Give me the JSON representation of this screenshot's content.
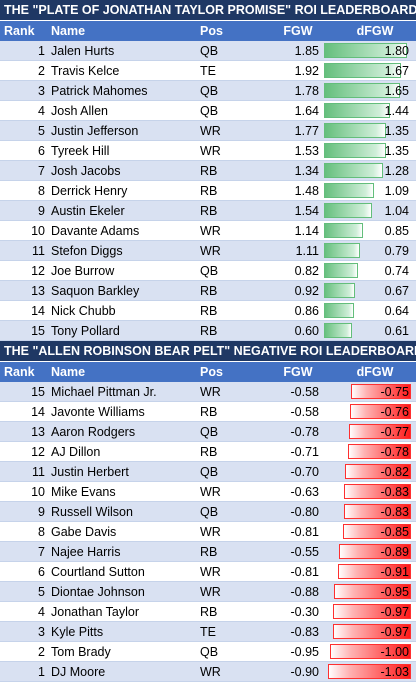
{
  "top_table": {
    "title": "THE \"PLATE OF JONATHAN TAYLOR PROMISE\" ROI LEADERBOARD",
    "headers": {
      "rank": "Rank",
      "name": "Name",
      "pos": "Pos",
      "fgw": "FGW",
      "dfgw": "dFGW"
    },
    "rows": [
      {
        "rank": "1",
        "name": "Jalen Hurts",
        "pos": "QB",
        "fgw": "1.85",
        "dfgw": "1.80",
        "dfgw_value": 1.8
      },
      {
        "rank": "2",
        "name": "Travis Kelce",
        "pos": "TE",
        "fgw": "1.92",
        "dfgw": "1.67",
        "dfgw_value": 1.67
      },
      {
        "rank": "3",
        "name": "Patrick Mahomes",
        "pos": "QB",
        "fgw": "1.78",
        "dfgw": "1.65",
        "dfgw_value": 1.65
      },
      {
        "rank": "4",
        "name": "Josh Allen",
        "pos": "QB",
        "fgw": "1.64",
        "dfgw": "1.44",
        "dfgw_value": 1.44
      },
      {
        "rank": "5",
        "name": "Justin Jefferson",
        "pos": "WR",
        "fgw": "1.77",
        "dfgw": "1.35",
        "dfgw_value": 1.35
      },
      {
        "rank": "6",
        "name": "Tyreek Hill",
        "pos": "WR",
        "fgw": "1.53",
        "dfgw": "1.35",
        "dfgw_value": 1.35
      },
      {
        "rank": "7",
        "name": "Josh Jacobs",
        "pos": "RB",
        "fgw": "1.34",
        "dfgw": "1.28",
        "dfgw_value": 1.28
      },
      {
        "rank": "8",
        "name": "Derrick Henry",
        "pos": "RB",
        "fgw": "1.48",
        "dfgw": "1.09",
        "dfgw_value": 1.09
      },
      {
        "rank": "9",
        "name": "Austin Ekeler",
        "pos": "RB",
        "fgw": "1.54",
        "dfgw": "1.04",
        "dfgw_value": 1.04
      },
      {
        "rank": "10",
        "name": "Davante Adams",
        "pos": "WR",
        "fgw": "1.14",
        "dfgw": "0.85",
        "dfgw_value": 0.85
      },
      {
        "rank": "11",
        "name": "Stefon Diggs",
        "pos": "WR",
        "fgw": "1.11",
        "dfgw": "0.79",
        "dfgw_value": 0.79
      },
      {
        "rank": "12",
        "name": "Joe Burrow",
        "pos": "QB",
        "fgw": "0.82",
        "dfgw": "0.74",
        "dfgw_value": 0.74
      },
      {
        "rank": "13",
        "name": "Saquon Barkley",
        "pos": "RB",
        "fgw": "0.92",
        "dfgw": "0.67",
        "dfgw_value": 0.67
      },
      {
        "rank": "14",
        "name": "Nick Chubb",
        "pos": "RB",
        "fgw": "0.86",
        "dfgw": "0.64",
        "dfgw_value": 0.64
      },
      {
        "rank": "15",
        "name": "Tony Pollard",
        "pos": "RB",
        "fgw": "0.60",
        "dfgw": "0.61",
        "dfgw_value": 0.61
      }
    ]
  },
  "bottom_table": {
    "title": "THE \"ALLEN ROBINSON BEAR PELT\" NEGATIVE ROI LEADERBOARD",
    "headers": {
      "rank": "Rank",
      "name": "Name",
      "pos": "Pos",
      "fgw": "FGW",
      "dfgw": "dFGW"
    },
    "rows": [
      {
        "rank": "15",
        "name": "Michael Pittman Jr.",
        "pos": "WR",
        "fgw": "-0.58",
        "dfgw": "-0.75",
        "dfgw_value": -0.75
      },
      {
        "rank": "14",
        "name": "Javonte Williams",
        "pos": "RB",
        "fgw": "-0.58",
        "dfgw": "-0.76",
        "dfgw_value": -0.76
      },
      {
        "rank": "13",
        "name": "Aaron Rodgers",
        "pos": "QB",
        "fgw": "-0.78",
        "dfgw": "-0.77",
        "dfgw_value": -0.77
      },
      {
        "rank": "12",
        "name": "AJ Dillon",
        "pos": "RB",
        "fgw": "-0.71",
        "dfgw": "-0.78",
        "dfgw_value": -0.78
      },
      {
        "rank": "11",
        "name": "Justin Herbert",
        "pos": "QB",
        "fgw": "-0.70",
        "dfgw": "-0.82",
        "dfgw_value": -0.82
      },
      {
        "rank": "10",
        "name": "Mike Evans",
        "pos": "WR",
        "fgw": "-0.63",
        "dfgw": "-0.83",
        "dfgw_value": -0.83
      },
      {
        "rank": "9",
        "name": "Russell Wilson",
        "pos": "QB",
        "fgw": "-0.80",
        "dfgw": "-0.83",
        "dfgw_value": -0.83
      },
      {
        "rank": "8",
        "name": "Gabe Davis",
        "pos": "WR",
        "fgw": "-0.81",
        "dfgw": "-0.85",
        "dfgw_value": -0.85
      },
      {
        "rank": "7",
        "name": "Najee Harris",
        "pos": "RB",
        "fgw": "-0.55",
        "dfgw": "-0.89",
        "dfgw_value": -0.89
      },
      {
        "rank": "6",
        "name": "Courtland Sutton",
        "pos": "WR",
        "fgw": "-0.81",
        "dfgw": "-0.91",
        "dfgw_value": -0.91
      },
      {
        "rank": "5",
        "name": "Diontae Johnson",
        "pos": "WR",
        "fgw": "-0.88",
        "dfgw": "-0.95",
        "dfgw_value": -0.95
      },
      {
        "rank": "4",
        "name": "Jonathan Taylor",
        "pos": "RB",
        "fgw": "-0.30",
        "dfgw": "-0.97",
        "dfgw_value": -0.97
      },
      {
        "rank": "3",
        "name": "Kyle Pitts",
        "pos": "TE",
        "fgw": "-0.83",
        "dfgw": "-0.97",
        "dfgw_value": -0.97
      },
      {
        "rank": "2",
        "name": "Tom Brady",
        "pos": "QB",
        "fgw": "-0.95",
        "dfgw": "-1.00",
        "dfgw_value": -1.0
      },
      {
        "rank": "1",
        "name": "DJ Moore",
        "pos": "WR",
        "fgw": "-0.90",
        "dfgw": "-1.03",
        "dfgw_value": -1.03
      }
    ]
  },
  "colors": {
    "title_bg": "#1f3864",
    "header_bg": "#4472c4",
    "band_bg": "#d9e1f2",
    "positive_bar": "#63be7b",
    "negative_bar": "#ff1a1a"
  }
}
